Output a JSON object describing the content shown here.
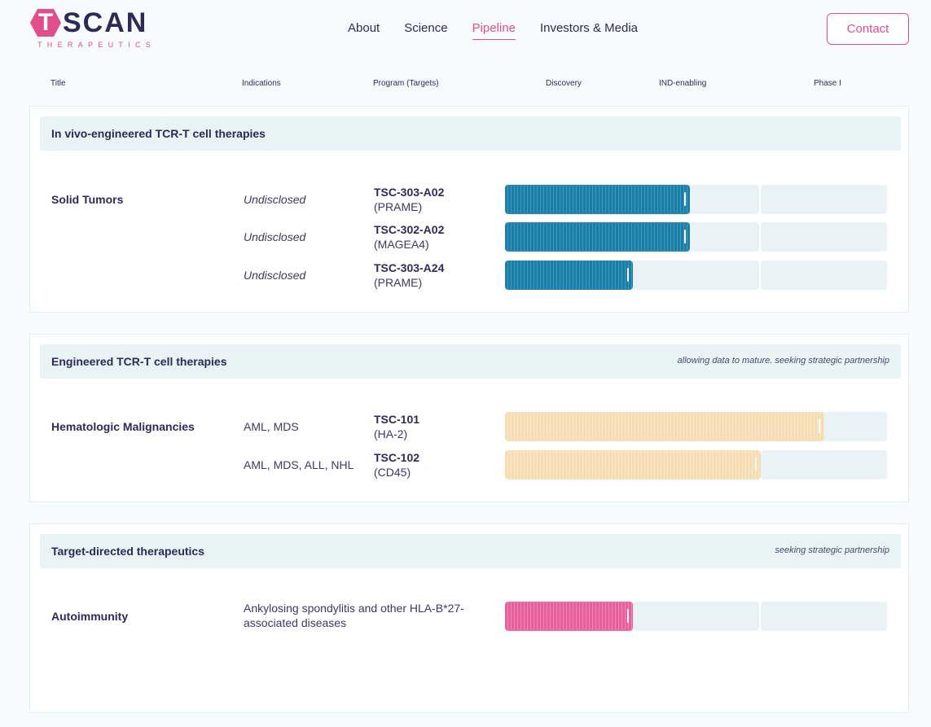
{
  "brand": {
    "logo_letter": "T",
    "logo_rest": "SCAN",
    "logo_sub": "THERAPEUTICS",
    "accent": "#e04e8c",
    "navy": "#2d2a5a"
  },
  "nav": {
    "items": [
      {
        "label": "About",
        "active": false
      },
      {
        "label": "Science",
        "active": false
      },
      {
        "label": "Pipeline",
        "active": true
      },
      {
        "label": "Investors & Media",
        "active": false
      }
    ],
    "contact_label": "Contact"
  },
  "columns": [
    "Title",
    "Indications",
    "Program (Targets)",
    "Discovery",
    "IND-enabling",
    "Phase I"
  ],
  "sections": [
    {
      "title": "In vivo-engineered TCR-T cell therapies",
      "note": "",
      "bar_color": "#1e7fa6",
      "group_title": "Solid Tumors",
      "rows": [
        {
          "indication": "Undisclosed",
          "program": "TSC-303-A02",
          "target": "(PRAME)",
          "progress_stages": 1.45
        },
        {
          "indication": "Undisclosed",
          "program": "TSC-302-A02",
          "target": "(MAGEA4)",
          "progress_stages": 1.45
        },
        {
          "indication": "Undisclosed",
          "program": "TSC-303-A24",
          "target": "(PRAME)",
          "progress_stages": 1.0
        }
      ]
    },
    {
      "title": "Engineered TCR-T cell therapies",
      "note": "allowing data to mature. seeking strategic partnership",
      "bar_color": "#f5dcb2",
      "group_title": "Hematologic Malignancies",
      "rows": [
        {
          "indication": "AML, MDS",
          "program": "TSC-101",
          "target": "(HA-2)",
          "progress_stages": 2.5
        },
        {
          "indication": "AML, MDS, ALL, NHL",
          "program": "TSC-102",
          "target": "(CD45)",
          "progress_stages": 2.0
        }
      ]
    },
    {
      "title": "Target-directed therapeutics",
      "note": "seeking strategic partnership",
      "bar_color": "#e9609c",
      "group_title": "Autoimmunity",
      "rows": [
        {
          "indication": "Ankylosing spondylitis and other HLA-B*27-associated diseases",
          "program": "",
          "target": "",
          "progress_stages": 1.0
        }
      ]
    }
  ]
}
